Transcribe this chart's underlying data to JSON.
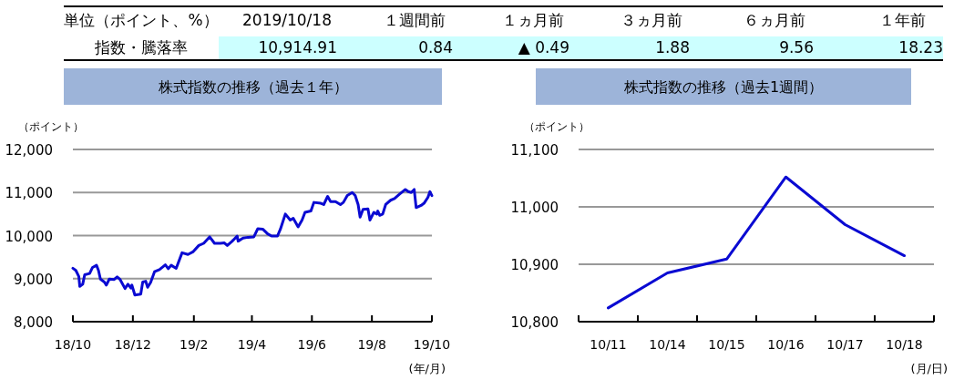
{
  "chart_data": [
    {
      "type": "other",
      "title": "単位（ポイント、%）",
      "categories": [
        "2019/10/18",
        "１週間前",
        "１ヵ月前",
        "３ヵ月前",
        "６ヵ月前",
        "１年前"
      ],
      "y_categories": [
        "指数・騰落率"
      ],
      "cell_labels": [
        [
          "10,914.91",
          "0.84",
          "▲ 0.49",
          "1.88",
          "9.56",
          "18.23"
        ]
      ],
      "color": "#ccffff"
    },
    {
      "type": "line",
      "title": "株式指数の推移（過去１年）",
      "ylabel": "（ポイント）",
      "xlabel": "(年/月)",
      "grid": "y",
      "x": [
        "2018-10-18",
        "2018-10-21",
        "2018-10-24",
        "2018-10-25",
        "2018-10-28",
        "2018-10-30",
        "2018-11-04",
        "2018-11-07",
        "2018-11-11",
        "2018-11-13",
        "2018-11-15",
        "2018-11-19",
        "2018-11-21",
        "2018-11-24",
        "2018-11-29",
        "2018-12-02",
        "2018-12-05",
        "2018-12-10",
        "2018-12-13",
        "2018-12-16",
        "2018-12-17",
        "2018-12-20",
        "2018-12-26",
        "2018-12-28",
        "2018-12-31",
        "2019-01-02",
        "2019-01-05",
        "2019-01-09",
        "2019-01-14",
        "2019-01-20",
        "2019-01-23",
        "2019-01-26",
        "2019-01-31",
        "2019-02-06",
        "2019-02-12",
        "2019-02-17",
        "2019-02-23",
        "2019-02-28",
        "2019-03-06",
        "2019-03-11",
        "2019-03-17",
        "2019-03-21",
        "2019-03-24",
        "2019-03-29",
        "2019-04-03",
        "2019-04-04",
        "2019-04-09",
        "2019-04-14",
        "2019-04-20",
        "2019-04-24",
        "2019-04-29",
        "2019-05-04",
        "2019-05-08",
        "2019-05-14",
        "2019-05-17",
        "2019-05-22",
        "2019-05-27",
        "2019-05-30",
        "2019-06-04",
        "2019-06-08",
        "2019-06-11",
        "2019-06-17",
        "2019-06-20",
        "2019-06-27",
        "2019-06-30",
        "2019-07-04",
        "2019-07-07",
        "2019-07-12",
        "2019-07-17",
        "2019-07-20",
        "2019-07-24",
        "2019-07-29",
        "2019-08-01",
        "2019-08-04",
        "2019-08-06",
        "2019-08-09",
        "2019-08-14",
        "2019-08-16",
        "2019-08-20",
        "2019-08-23",
        "2019-08-24",
        "2019-08-26",
        "2019-08-29",
        "2019-09-01",
        "2019-09-06",
        "2019-09-10",
        "2019-09-15",
        "2019-09-21",
        "2019-09-24",
        "2019-09-27",
        "2019-09-30",
        "2019-10-02",
        "2019-10-07",
        "2019-10-10",
        "2019-10-14",
        "2019-10-16",
        "2019-10-18"
      ],
      "series": [
        {
          "color": "#0a0ad2",
          "values": [
            9240,
            9190,
            9050,
            8820,
            8870,
            9090,
            9120,
            9260,
            9310,
            9190,
            8990,
            8920,
            8850,
            8990,
            8980,
            9040,
            8980,
            8770,
            8870,
            8780,
            8850,
            8620,
            8640,
            8920,
            8940,
            8800,
            8910,
            9160,
            9210,
            9320,
            9230,
            9310,
            9240,
            9600,
            9560,
            9620,
            9770,
            9820,
            9970,
            9820,
            9820,
            9830,
            9770,
            9870,
            9990,
            9870,
            9940,
            9960,
            9970,
            10160,
            10150,
            10040,
            9990,
            9990,
            10150,
            10500,
            10360,
            10400,
            10200,
            10360,
            10540,
            10570,
            10770,
            10750,
            10720,
            10910,
            10790,
            10790,
            10720,
            10770,
            10930,
            11000,
            10930,
            10720,
            10430,
            10610,
            10620,
            10360,
            10540,
            10500,
            10570,
            10470,
            10500,
            10720,
            10820,
            10860,
            10960,
            11070,
            11020,
            11000,
            11070,
            10650,
            10700,
            10750,
            10890,
            11020,
            10930
          ]
        }
      ],
      "xlim": [
        "2018-10-18",
        "2019-10-18"
      ],
      "xticks": [
        {
          "value": "2018-10-18",
          "label": "18/10"
        },
        {
          "value": "2018-12-18",
          "label": "18/12"
        },
        {
          "value": "2019-02-18",
          "label": "19/2"
        },
        {
          "value": "2019-04-18",
          "label": "19/4"
        },
        {
          "value": "2019-06-18",
          "label": "19/6"
        },
        {
          "value": "2019-08-18",
          "label": "19/8"
        },
        {
          "value": "2019-10-18",
          "label": "19/10"
        }
      ],
      "ylim": [
        8000,
        12000
      ],
      "yticks": [
        {
          "value": 8000,
          "label": "8,000"
        },
        {
          "value": 9000,
          "label": "9,000"
        },
        {
          "value": 10000,
          "label": "10,000"
        },
        {
          "value": 11000,
          "label": "11,000"
        },
        {
          "value": 12000,
          "label": "12,000"
        }
      ]
    },
    {
      "type": "line",
      "title": "株式指数の推移（過去1週間）",
      "ylabel": "（ポイント）",
      "xlabel": "(月/日)",
      "grid": "y",
      "categories": [
        "10/11",
        "10/14",
        "10/15",
        "10/16",
        "10/17",
        "10/18"
      ],
      "series": [
        {
          "color": "#0a0ad2",
          "values": [
            10824,
            10885,
            10909,
            11052,
            10969,
            10915
          ]
        }
      ],
      "ylim": [
        10800,
        11100
      ],
      "yticks": [
        {
          "value": 10800,
          "label": "10,800"
        },
        {
          "value": 10900,
          "label": "10,900"
        },
        {
          "value": 11000,
          "label": "11,000"
        },
        {
          "value": 11100,
          "label": "11,100"
        }
      ]
    }
  ]
}
